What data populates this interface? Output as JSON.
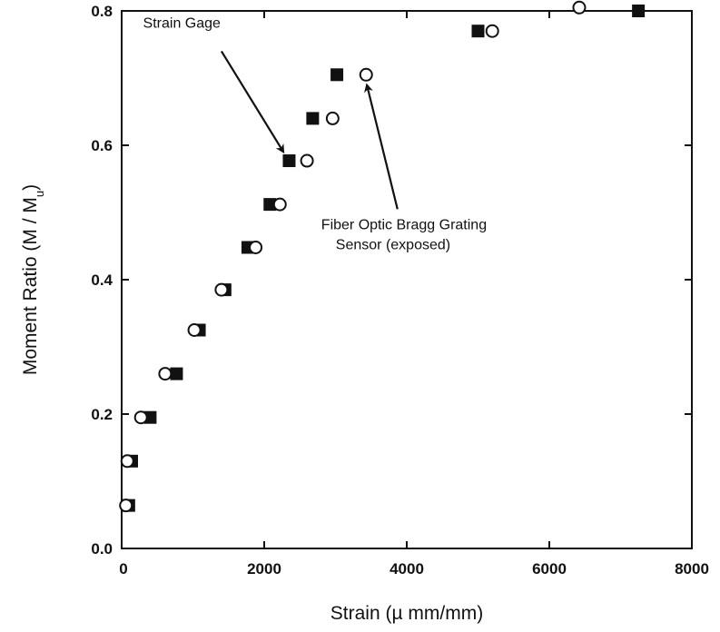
{
  "chart_data": {
    "type": "scatter",
    "xlabel": "Strain (µ mm/mm)",
    "ylabel": "Moment Ratio (M / M",
    "ylabel_subscript": "u",
    "ylabel_close": ")",
    "xlim": [
      0,
      8000
    ],
    "ylim": [
      0,
      0.8
    ],
    "xticks": [
      0,
      2000,
      4000,
      6000,
      8000
    ],
    "yticks": [
      0.0,
      0.2,
      0.4,
      0.6,
      0.8
    ],
    "ytick_labels": [
      "0.0",
      "0.2",
      "0.4",
      "0.6",
      "0.8"
    ],
    "grid": false,
    "series": [
      {
        "name": "Strain Gage",
        "marker": "filled-square",
        "color": "#111111",
        "points": [
          [
            100,
            0.064
          ],
          [
            140,
            0.13
          ],
          [
            400,
            0.195
          ],
          [
            770,
            0.26
          ],
          [
            1090,
            0.325
          ],
          [
            1450,
            0.385
          ],
          [
            1770,
            0.448
          ],
          [
            2080,
            0.512
          ],
          [
            2350,
            0.577
          ],
          [
            2680,
            0.64
          ],
          [
            3020,
            0.705
          ],
          [
            5000,
            0.77
          ],
          [
            7250,
            0.8
          ]
        ]
      },
      {
        "name": "Fiber Optic Bragg Grating Sensor (exposed)",
        "marker": "open-circle",
        "color": "#111111",
        "points": [
          [
            60,
            0.064
          ],
          [
            80,
            0.13
          ],
          [
            270,
            0.195
          ],
          [
            610,
            0.26
          ],
          [
            1020,
            0.325
          ],
          [
            1400,
            0.385
          ],
          [
            1880,
            0.448
          ],
          [
            2220,
            0.512
          ],
          [
            2600,
            0.577
          ],
          [
            2960,
            0.64
          ],
          [
            3430,
            0.705
          ],
          [
            5200,
            0.77
          ],
          [
            6420,
            0.805
          ]
        ]
      }
    ],
    "annotations": [
      {
        "lines": [
          "Strain Gage"
        ],
        "text_at": [
          300,
          0.775
        ],
        "arrow_from": [
          1400,
          0.74
        ],
        "arrow_to": [
          2270,
          0.59
        ]
      },
      {
        "lines": [
          "Fiber Optic Bragg Grating",
          "Sensor (exposed)"
        ],
        "text_at": [
          2800,
          0.475
        ],
        "arrow_from": [
          3870,
          0.505
        ],
        "arrow_to": [
          3440,
          0.69
        ]
      }
    ]
  }
}
